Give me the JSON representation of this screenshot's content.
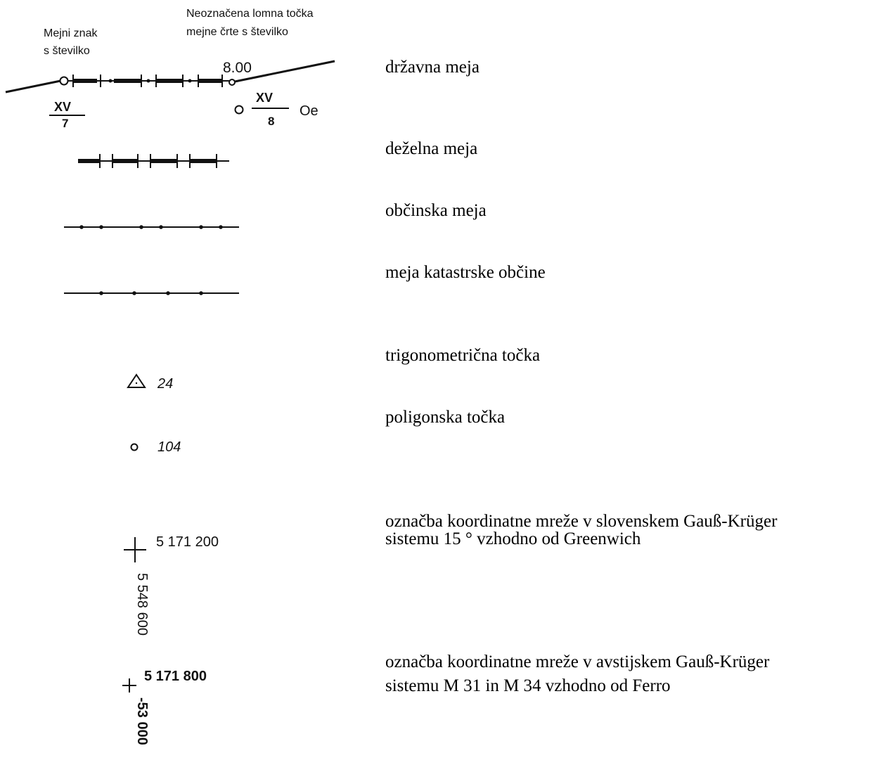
{
  "diagram": {
    "border": {
      "label_left_line1": "Mejni znak",
      "label_left_line2": "s številko",
      "label_right_line1": "Neoznačena lomna točka",
      "label_right_line2": "mejne črte s številko",
      "distance": "8.00",
      "left_marker_top": "XV",
      "left_marker_bottom": "7",
      "right_marker_top": "XV",
      "right_marker_bottom": "8",
      "right_marker_suffix": "Oe"
    },
    "trig_point_number": "24",
    "polygon_point_number": "104",
    "slovene_grid_easting": "5 171 200",
    "slovene_grid_northing": "5 548 600",
    "austrian_grid_easting": "5 171 800",
    "austrian_grid_northing": "-53 000"
  },
  "legend": {
    "state_border": "državna meja",
    "provincial_border": "deželna meja",
    "municipal_border": "občinska meja",
    "cadastral_border": "meja katastrske občine",
    "trig_point": "trigonometrična točka",
    "polygon_point": "poligonska točka",
    "slovene_grid_line1": "označba koordinatne mreže v slovenskem Gauß-Krüger",
    "slovene_grid_line2": "sistemu 15 ° vzhodno od Greenwich",
    "austrian_grid_line1": "označba koordinatne mreže v avstijskem Gauß-Krüger",
    "austrian_grid_line2": "sistemu M 31 in M 34 vzhodno od Ferro"
  }
}
